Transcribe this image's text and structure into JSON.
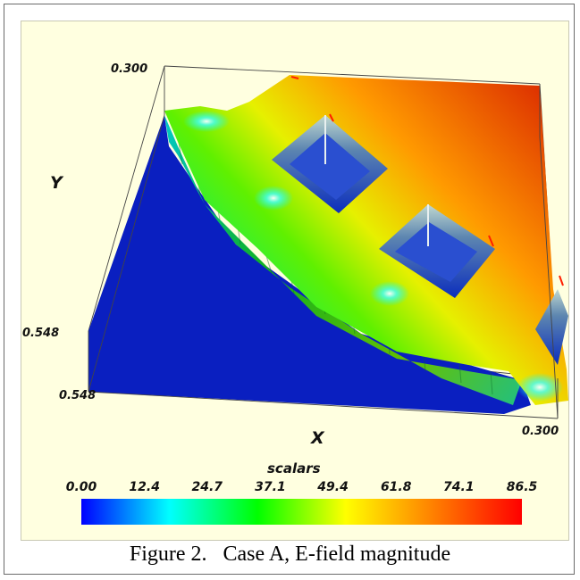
{
  "caption": "Figure 2.   Case A, E-field magnitude",
  "chart_data": {
    "type": "heatmap",
    "rendering": "3D surface plot of scalar field",
    "xlabel": "X",
    "ylabel": "Y",
    "axis_ticks": {
      "y_top": "0.300",
      "y_left": "0.548",
      "x_left": "0.548",
      "x_right": "0.300"
    },
    "colorbar": {
      "title": "scalars",
      "range": [
        0.0,
        86.5
      ],
      "ticks": [
        "0.00",
        "12.4",
        "24.7",
        "37.1",
        "49.4",
        "61.8",
        "74.1",
        "86.5"
      ],
      "colormap": [
        "#0000ff",
        "#00ffff",
        "#00ff00",
        "#ffff00",
        "#ff7f00",
        "#ff0000"
      ]
    },
    "colors": {
      "background": "#ffffe0",
      "base_plane": "#0a1fc0"
    }
  }
}
